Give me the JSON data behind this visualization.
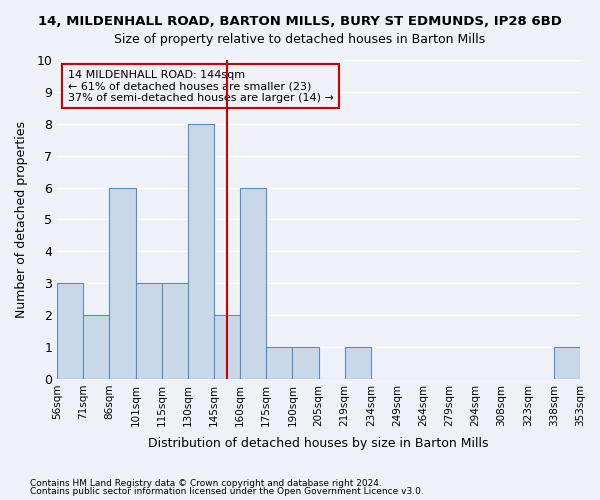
{
  "title": "14, MILDENHALL ROAD, BARTON MILLS, BURY ST EDMUNDS, IP28 6BD",
  "subtitle": "Size of property relative to detached houses in Barton Mills",
  "xlabel": "Distribution of detached houses by size in Barton Mills",
  "ylabel": "Number of detached properties",
  "footnote1": "Contains HM Land Registry data © Crown copyright and database right 2024.",
  "footnote2": "Contains public sector information licensed under the Open Government Licence v3.0.",
  "bin_labels": [
    "56sqm",
    "71sqm",
    "86sqm",
    "101sqm",
    "115sqm",
    "130sqm",
    "145sqm",
    "160sqm",
    "175sqm",
    "190sqm",
    "205sqm",
    "219sqm",
    "234sqm",
    "249sqm",
    "264sqm",
    "279sqm",
    "294sqm",
    "308sqm",
    "323sqm",
    "338sqm",
    "353sqm"
  ],
  "bar_values": [
    3,
    2,
    6,
    3,
    3,
    8,
    2,
    6,
    1,
    1,
    0,
    1,
    0,
    0,
    0,
    0,
    0,
    0,
    0,
    1
  ],
  "bar_color": "#c8d8e8",
  "bar_edge_color": "#5a8abf",
  "highlight_index": 6,
  "highlight_color": "#cc0000",
  "ylim": [
    0,
    10
  ],
  "yticks": [
    0,
    1,
    2,
    3,
    4,
    5,
    6,
    7,
    8,
    9,
    10
  ],
  "annotation_text": "14 MILDENHALL ROAD: 144sqm\n← 61% of detached houses are smaller (23)\n37% of semi-detached houses are larger (14) →",
  "annotation_box_color": "#cc0000",
  "bg_color": "#eef2f8",
  "grid_color": "#ffffff"
}
